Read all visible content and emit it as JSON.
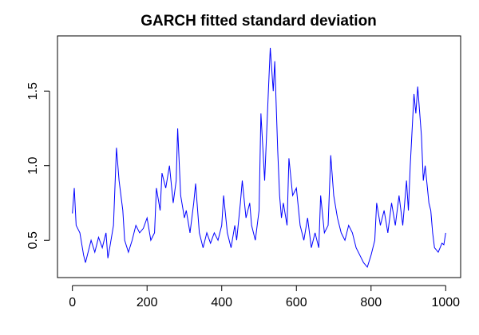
{
  "chart_data": {
    "type": "line",
    "title": "GARCH fitted standard deviation",
    "x": [
      0,
      5,
      10,
      20,
      30,
      35,
      45,
      50,
      60,
      70,
      80,
      90,
      95,
      100,
      110,
      118,
      125,
      135,
      140,
      150,
      160,
      170,
      180,
      190,
      200,
      210,
      220,
      225,
      235,
      240,
      250,
      260,
      270,
      278,
      282,
      290,
      300,
      305,
      315,
      325,
      330,
      340,
      350,
      360,
      370,
      380,
      390,
      400,
      405,
      415,
      425,
      435,
      440,
      450,
      455,
      465,
      475,
      480,
      490,
      500,
      505,
      515,
      525,
      530,
      538,
      542,
      550,
      555,
      560,
      565,
      575,
      580,
      590,
      600,
      610,
      620,
      630,
      640,
      650,
      660,
      665,
      675,
      685,
      692,
      700,
      710,
      720,
      730,
      740,
      750,
      760,
      770,
      780,
      790,
      800,
      810,
      815,
      825,
      835,
      845,
      855,
      865,
      875,
      885,
      895,
      900,
      905,
      915,
      920,
      925,
      935,
      940,
      945,
      955,
      960,
      965,
      970,
      980,
      990,
      995,
      1000
    ],
    "series": [
      {
        "color": "#0000ff",
        "values": [
          0.68,
          0.85,
          0.6,
          0.55,
          0.4,
          0.35,
          0.45,
          0.5,
          0.42,
          0.52,
          0.45,
          0.55,
          0.38,
          0.45,
          0.6,
          1.12,
          0.9,
          0.7,
          0.5,
          0.42,
          0.5,
          0.6,
          0.55,
          0.58,
          0.65,
          0.5,
          0.55,
          0.85,
          0.7,
          0.95,
          0.85,
          1.0,
          0.75,
          0.9,
          1.25,
          0.8,
          0.65,
          0.7,
          0.55,
          0.75,
          0.88,
          0.55,
          0.45,
          0.55,
          0.48,
          0.55,
          0.5,
          0.6,
          0.8,
          0.55,
          0.45,
          0.6,
          0.5,
          0.75,
          0.9,
          0.65,
          0.75,
          0.6,
          0.5,
          0.7,
          1.35,
          0.9,
          1.5,
          1.79,
          1.5,
          1.7,
          1.1,
          0.8,
          0.65,
          0.75,
          0.6,
          1.05,
          0.8,
          0.85,
          0.6,
          0.5,
          0.65,
          0.45,
          0.55,
          0.45,
          0.8,
          0.55,
          0.6,
          1.07,
          0.8,
          0.65,
          0.55,
          0.5,
          0.6,
          0.55,
          0.45,
          0.4,
          0.35,
          0.32,
          0.4,
          0.5,
          0.75,
          0.6,
          0.7,
          0.55,
          0.75,
          0.6,
          0.8,
          0.6,
          0.9,
          0.7,
          1.0,
          1.48,
          1.35,
          1.53,
          1.2,
          0.9,
          1.0,
          0.75,
          0.7,
          0.55,
          0.45,
          0.42,
          0.48,
          0.47,
          0.55
        ]
      }
    ],
    "xlim": [
      -40,
      1040
    ],
    "ylim": [
      0.25,
      1.87
    ],
    "xticks": [
      0,
      200,
      400,
      600,
      800,
      1000
    ],
    "yticks": [
      0.5,
      {
        "value": 1,
        "label": "1.0"
      },
      1.5
    ]
  }
}
